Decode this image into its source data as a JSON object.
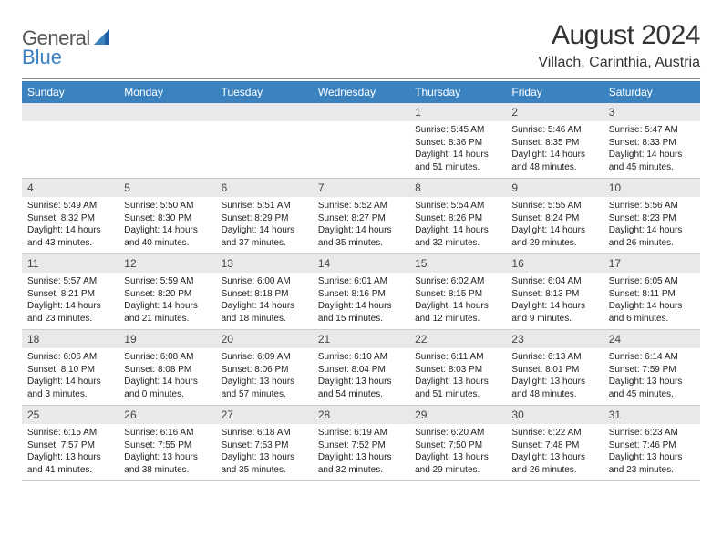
{
  "brand": {
    "part1": "General",
    "part2": "Blue"
  },
  "title": "August 2024",
  "location": "Villach, Carinthia, Austria",
  "colors": {
    "header_bg": "#3b83c0",
    "header_text": "#ffffff",
    "daynum_bg": "#e9e9e9",
    "divider": "#888888",
    "logo_gray": "#555555",
    "logo_blue": "#3b7fc4"
  },
  "weekdays": [
    "Sunday",
    "Monday",
    "Tuesday",
    "Wednesday",
    "Thursday",
    "Friday",
    "Saturday"
  ],
  "weeks": [
    [
      null,
      null,
      null,
      null,
      {
        "n": "1",
        "sr": "Sunrise: 5:45 AM",
        "ss": "Sunset: 8:36 PM",
        "d1": "Daylight: 14 hours",
        "d2": "and 51 minutes."
      },
      {
        "n": "2",
        "sr": "Sunrise: 5:46 AM",
        "ss": "Sunset: 8:35 PM",
        "d1": "Daylight: 14 hours",
        "d2": "and 48 minutes."
      },
      {
        "n": "3",
        "sr": "Sunrise: 5:47 AM",
        "ss": "Sunset: 8:33 PM",
        "d1": "Daylight: 14 hours",
        "d2": "and 45 minutes."
      }
    ],
    [
      {
        "n": "4",
        "sr": "Sunrise: 5:49 AM",
        "ss": "Sunset: 8:32 PM",
        "d1": "Daylight: 14 hours",
        "d2": "and 43 minutes."
      },
      {
        "n": "5",
        "sr": "Sunrise: 5:50 AM",
        "ss": "Sunset: 8:30 PM",
        "d1": "Daylight: 14 hours",
        "d2": "and 40 minutes."
      },
      {
        "n": "6",
        "sr": "Sunrise: 5:51 AM",
        "ss": "Sunset: 8:29 PM",
        "d1": "Daylight: 14 hours",
        "d2": "and 37 minutes."
      },
      {
        "n": "7",
        "sr": "Sunrise: 5:52 AM",
        "ss": "Sunset: 8:27 PM",
        "d1": "Daylight: 14 hours",
        "d2": "and 35 minutes."
      },
      {
        "n": "8",
        "sr": "Sunrise: 5:54 AM",
        "ss": "Sunset: 8:26 PM",
        "d1": "Daylight: 14 hours",
        "d2": "and 32 minutes."
      },
      {
        "n": "9",
        "sr": "Sunrise: 5:55 AM",
        "ss": "Sunset: 8:24 PM",
        "d1": "Daylight: 14 hours",
        "d2": "and 29 minutes."
      },
      {
        "n": "10",
        "sr": "Sunrise: 5:56 AM",
        "ss": "Sunset: 8:23 PM",
        "d1": "Daylight: 14 hours",
        "d2": "and 26 minutes."
      }
    ],
    [
      {
        "n": "11",
        "sr": "Sunrise: 5:57 AM",
        "ss": "Sunset: 8:21 PM",
        "d1": "Daylight: 14 hours",
        "d2": "and 23 minutes."
      },
      {
        "n": "12",
        "sr": "Sunrise: 5:59 AM",
        "ss": "Sunset: 8:20 PM",
        "d1": "Daylight: 14 hours",
        "d2": "and 21 minutes."
      },
      {
        "n": "13",
        "sr": "Sunrise: 6:00 AM",
        "ss": "Sunset: 8:18 PM",
        "d1": "Daylight: 14 hours",
        "d2": "and 18 minutes."
      },
      {
        "n": "14",
        "sr": "Sunrise: 6:01 AM",
        "ss": "Sunset: 8:16 PM",
        "d1": "Daylight: 14 hours",
        "d2": "and 15 minutes."
      },
      {
        "n": "15",
        "sr": "Sunrise: 6:02 AM",
        "ss": "Sunset: 8:15 PM",
        "d1": "Daylight: 14 hours",
        "d2": "and 12 minutes."
      },
      {
        "n": "16",
        "sr": "Sunrise: 6:04 AM",
        "ss": "Sunset: 8:13 PM",
        "d1": "Daylight: 14 hours",
        "d2": "and 9 minutes."
      },
      {
        "n": "17",
        "sr": "Sunrise: 6:05 AM",
        "ss": "Sunset: 8:11 PM",
        "d1": "Daylight: 14 hours",
        "d2": "and 6 minutes."
      }
    ],
    [
      {
        "n": "18",
        "sr": "Sunrise: 6:06 AM",
        "ss": "Sunset: 8:10 PM",
        "d1": "Daylight: 14 hours",
        "d2": "and 3 minutes."
      },
      {
        "n": "19",
        "sr": "Sunrise: 6:08 AM",
        "ss": "Sunset: 8:08 PM",
        "d1": "Daylight: 14 hours",
        "d2": "and 0 minutes."
      },
      {
        "n": "20",
        "sr": "Sunrise: 6:09 AM",
        "ss": "Sunset: 8:06 PM",
        "d1": "Daylight: 13 hours",
        "d2": "and 57 minutes."
      },
      {
        "n": "21",
        "sr": "Sunrise: 6:10 AM",
        "ss": "Sunset: 8:04 PM",
        "d1": "Daylight: 13 hours",
        "d2": "and 54 minutes."
      },
      {
        "n": "22",
        "sr": "Sunrise: 6:11 AM",
        "ss": "Sunset: 8:03 PM",
        "d1": "Daylight: 13 hours",
        "d2": "and 51 minutes."
      },
      {
        "n": "23",
        "sr": "Sunrise: 6:13 AM",
        "ss": "Sunset: 8:01 PM",
        "d1": "Daylight: 13 hours",
        "d2": "and 48 minutes."
      },
      {
        "n": "24",
        "sr": "Sunrise: 6:14 AM",
        "ss": "Sunset: 7:59 PM",
        "d1": "Daylight: 13 hours",
        "d2": "and 45 minutes."
      }
    ],
    [
      {
        "n": "25",
        "sr": "Sunrise: 6:15 AM",
        "ss": "Sunset: 7:57 PM",
        "d1": "Daylight: 13 hours",
        "d2": "and 41 minutes."
      },
      {
        "n": "26",
        "sr": "Sunrise: 6:16 AM",
        "ss": "Sunset: 7:55 PM",
        "d1": "Daylight: 13 hours",
        "d2": "and 38 minutes."
      },
      {
        "n": "27",
        "sr": "Sunrise: 6:18 AM",
        "ss": "Sunset: 7:53 PM",
        "d1": "Daylight: 13 hours",
        "d2": "and 35 minutes."
      },
      {
        "n": "28",
        "sr": "Sunrise: 6:19 AM",
        "ss": "Sunset: 7:52 PM",
        "d1": "Daylight: 13 hours",
        "d2": "and 32 minutes."
      },
      {
        "n": "29",
        "sr": "Sunrise: 6:20 AM",
        "ss": "Sunset: 7:50 PM",
        "d1": "Daylight: 13 hours",
        "d2": "and 29 minutes."
      },
      {
        "n": "30",
        "sr": "Sunrise: 6:22 AM",
        "ss": "Sunset: 7:48 PM",
        "d1": "Daylight: 13 hours",
        "d2": "and 26 minutes."
      },
      {
        "n": "31",
        "sr": "Sunrise: 6:23 AM",
        "ss": "Sunset: 7:46 PM",
        "d1": "Daylight: 13 hours",
        "d2": "and 23 minutes."
      }
    ]
  ]
}
